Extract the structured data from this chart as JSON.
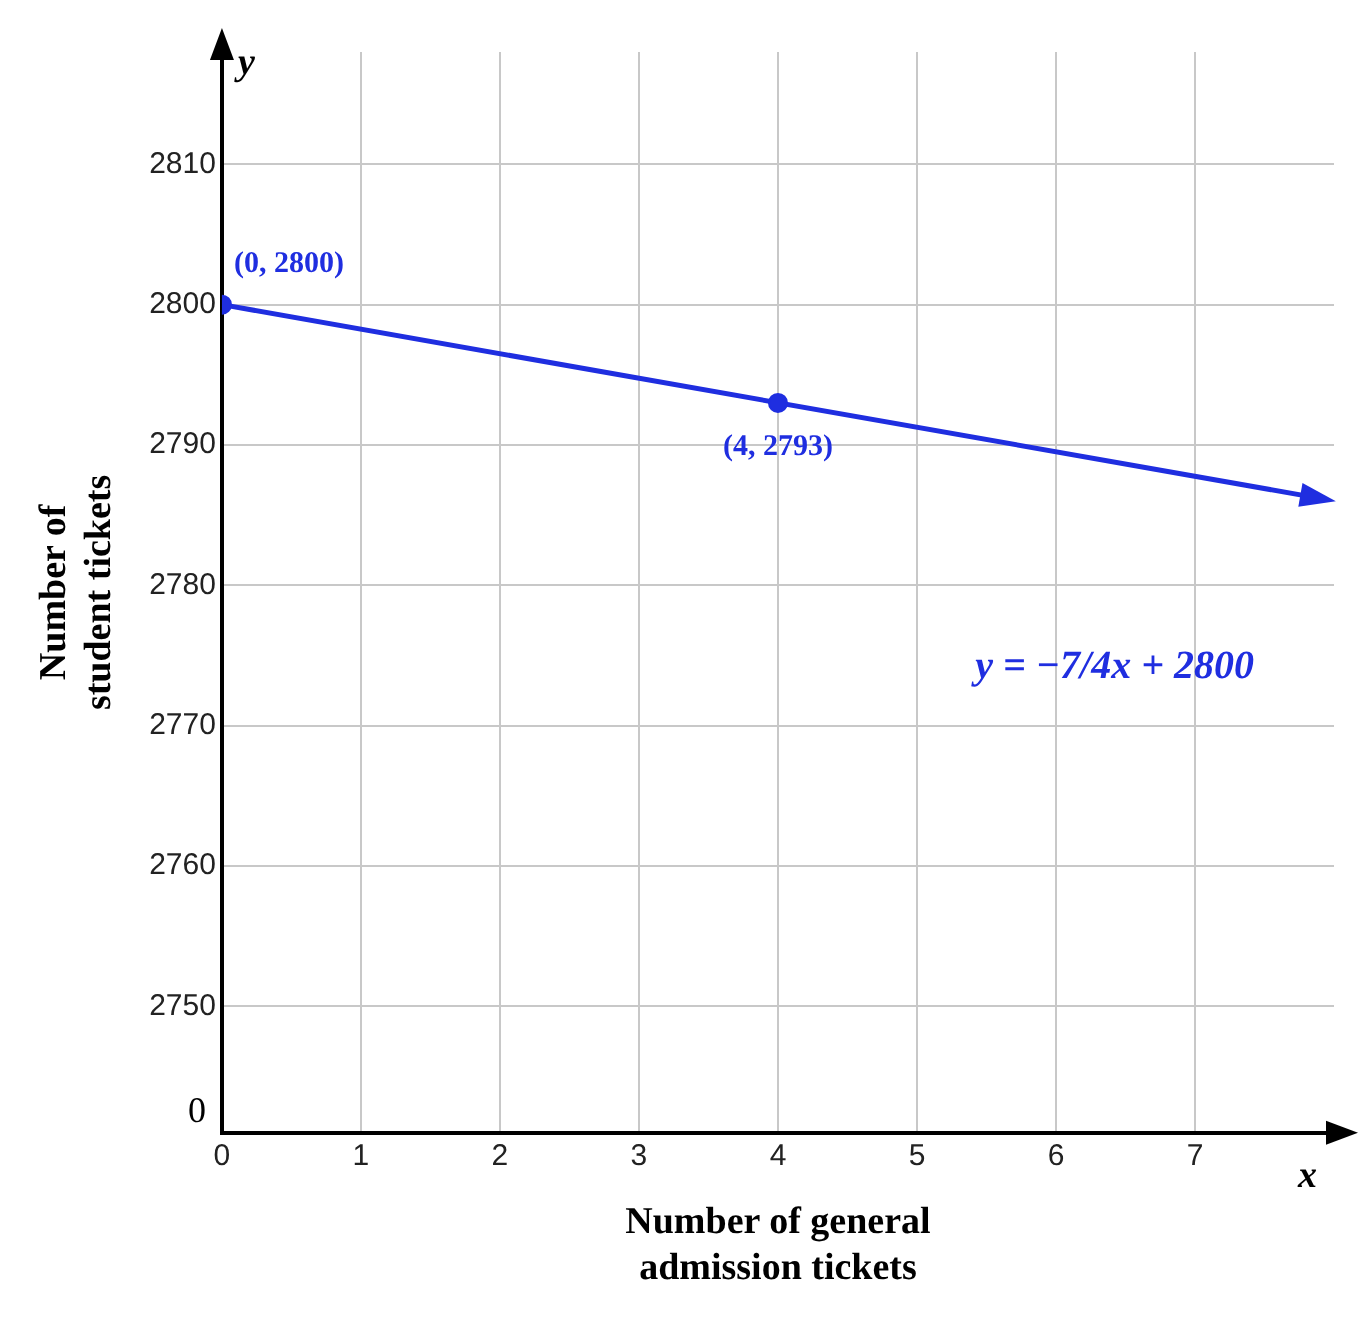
{
  "chart_data": {
    "type": "line",
    "xlabel": "Number of general admission tickets",
    "ylabel": "Number of student tickets",
    "xlim": [
      0,
      8
    ],
    "xticks": [
      0,
      1,
      2,
      3,
      4,
      5,
      6,
      7
    ],
    "ylim": [
      2741,
      2818
    ],
    "yticks": [
      2750,
      2760,
      2770,
      2780,
      2790,
      2800,
      2810
    ],
    "grid": true,
    "series": [
      {
        "type": "scatter",
        "color": "#1f2ee0",
        "marker": "circle",
        "x": [
          0,
          4
        ],
        "values": [
          2800,
          2793
        ]
      },
      {
        "type": "line",
        "color": "#1f2ee0",
        "marker": "triangle",
        "x": [
          0,
          7.9
        ],
        "values": [
          2800,
          2786.2
        ]
      }
    ],
    "annotations": [
      {
        "text": "(0, 2800)",
        "x": 0,
        "y": 2800
      },
      {
        "text": "(4, 2793)",
        "x": 4,
        "y": 2793
      },
      "x",
      "y",
      "y = −7/4x + 2800",
      "0"
    ]
  }
}
